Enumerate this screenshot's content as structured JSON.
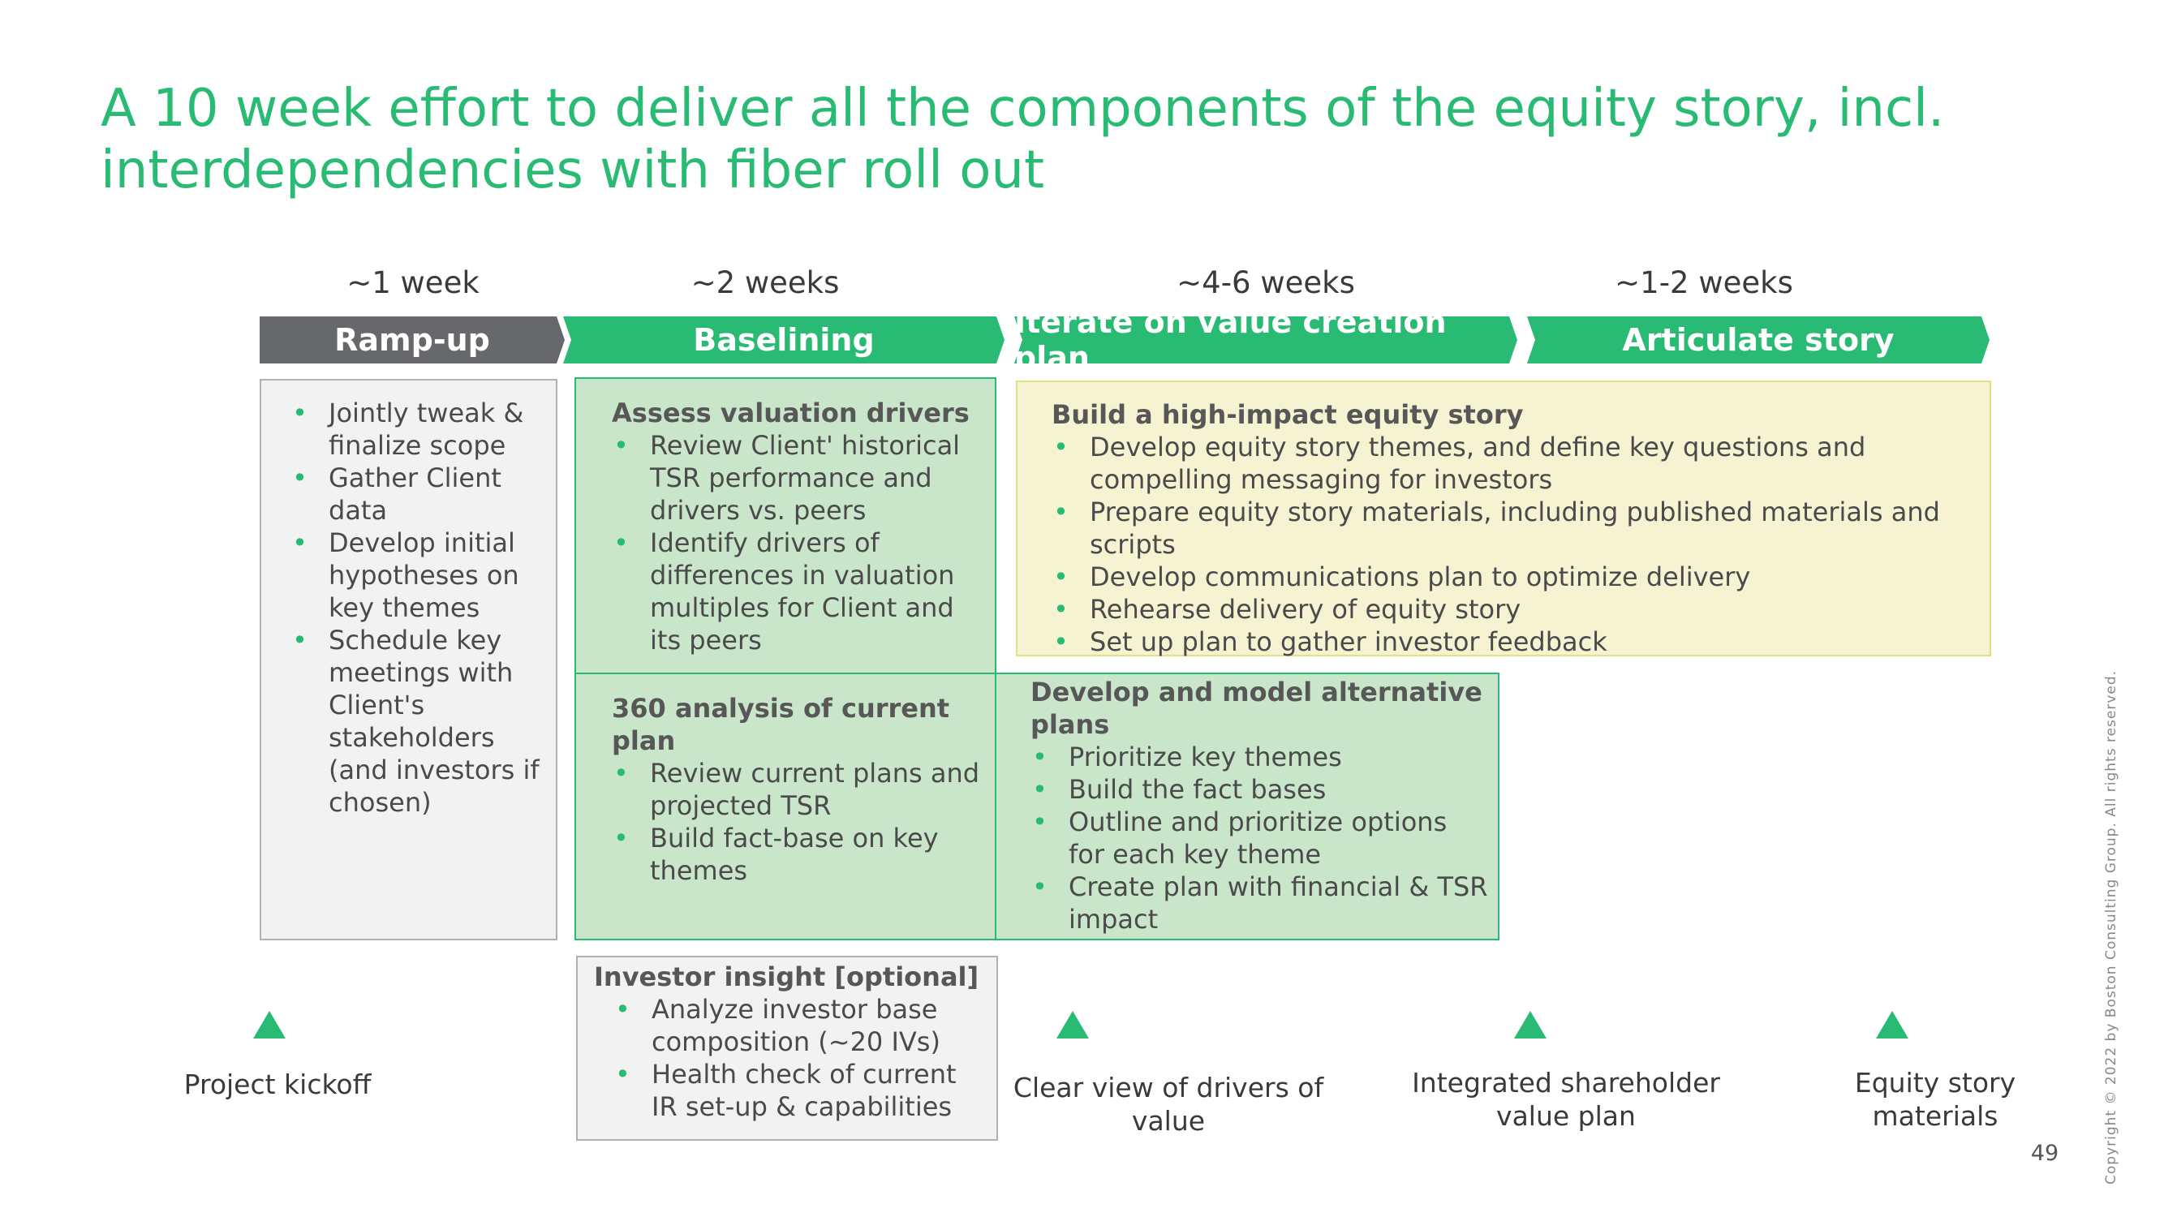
{
  "title": "A 10 week effort to deliver all the components of the equity story, incl. interdependencies with fiber roll out",
  "colors": {
    "accent": "#29ba74",
    "phase_grey": "#66686b",
    "box_green": "#c9e6ca",
    "box_yellow": "#f6f3d2",
    "box_grey": "#f2f2f2"
  },
  "durations": [
    "~1 week",
    "~2 weeks",
    "~4-6 weeks",
    "~1-2 weeks"
  ],
  "phases": [
    "Ramp-up",
    "Baselining",
    "Iterate on value creation plan",
    "Articulate story"
  ],
  "rampup": {
    "bullets": [
      "Jointly tweak & finalize scope",
      "Gather Client data",
      "Develop initial hypotheses on key themes",
      "Schedule key meetings with Client's stakeholders (and investors if chosen)"
    ]
  },
  "valuation": {
    "title": "Assess valuation drivers",
    "bullets": [
      "Review Client' historical TSR performance and drivers vs. peers",
      "Identify drivers of differences in valuation multiples for Client and its peers"
    ]
  },
  "analysis": {
    "title": "360 analysis of current plan",
    "bullets": [
      "Review current plans and projected TSR",
      "Build fact-base on key themes"
    ]
  },
  "investor": {
    "title": "Investor insight [optional]",
    "bullets": [
      "Analyze investor base composition (~20 IVs)",
      "Health check of current IR set-up & capabilities"
    ]
  },
  "alternative": {
    "title": "Develop and model alternative plans",
    "bullets": [
      "Prioritize key themes",
      "Build the fact bases",
      "Outline and prioritize options for each key theme",
      "Create plan with financial & TSR impact"
    ]
  },
  "equity": {
    "title": "Build a high-impact equity story",
    "bullets": [
      "Develop equity story themes, and define key questions and compelling messaging for investors",
      "Prepare equity story materials, including published materials and scripts",
      "Develop communications plan to optimize delivery",
      "Rehearse delivery of equity story",
      "Set up plan to gather investor feedback"
    ]
  },
  "milestones": [
    {
      "icon": "triangle-milestone-icon",
      "label": "Project kickoff"
    },
    {
      "icon": "triangle-milestone-icon",
      "label": "Clear view of drivers of value"
    },
    {
      "icon": "triangle-milestone-icon",
      "label": "Integrated shareholder value plan"
    },
    {
      "icon": "triangle-milestone-icon",
      "label": "Equity story materials"
    }
  ],
  "copyright": "Copyright © 2022 by Boston Consulting Group. All rights reserved.",
  "page_number": "49"
}
